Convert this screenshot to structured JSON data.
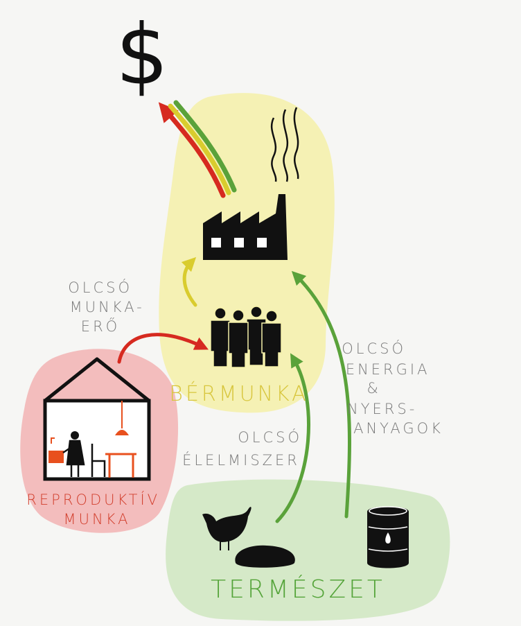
{
  "symbol": "$",
  "nodes": [
    {
      "label": [
        "BÉRMUNKA"
      ]
    },
    {
      "label": [
        "REPRODUKTÍV",
        "MUNKA"
      ]
    },
    {
      "label": [
        "TERMÉSZET"
      ]
    }
  ],
  "edges": [
    {
      "label": [
        "OLCSÓ",
        "MUNKA-",
        "ERŐ"
      ]
    },
    {
      "label": [
        "OLCSÓ",
        "ÉLELMISZER"
      ]
    },
    {
      "label": [
        "OLCSÓ",
        "ENERGIA",
        "&",
        "NYERS-",
        "ANYAGOK"
      ]
    }
  ]
}
